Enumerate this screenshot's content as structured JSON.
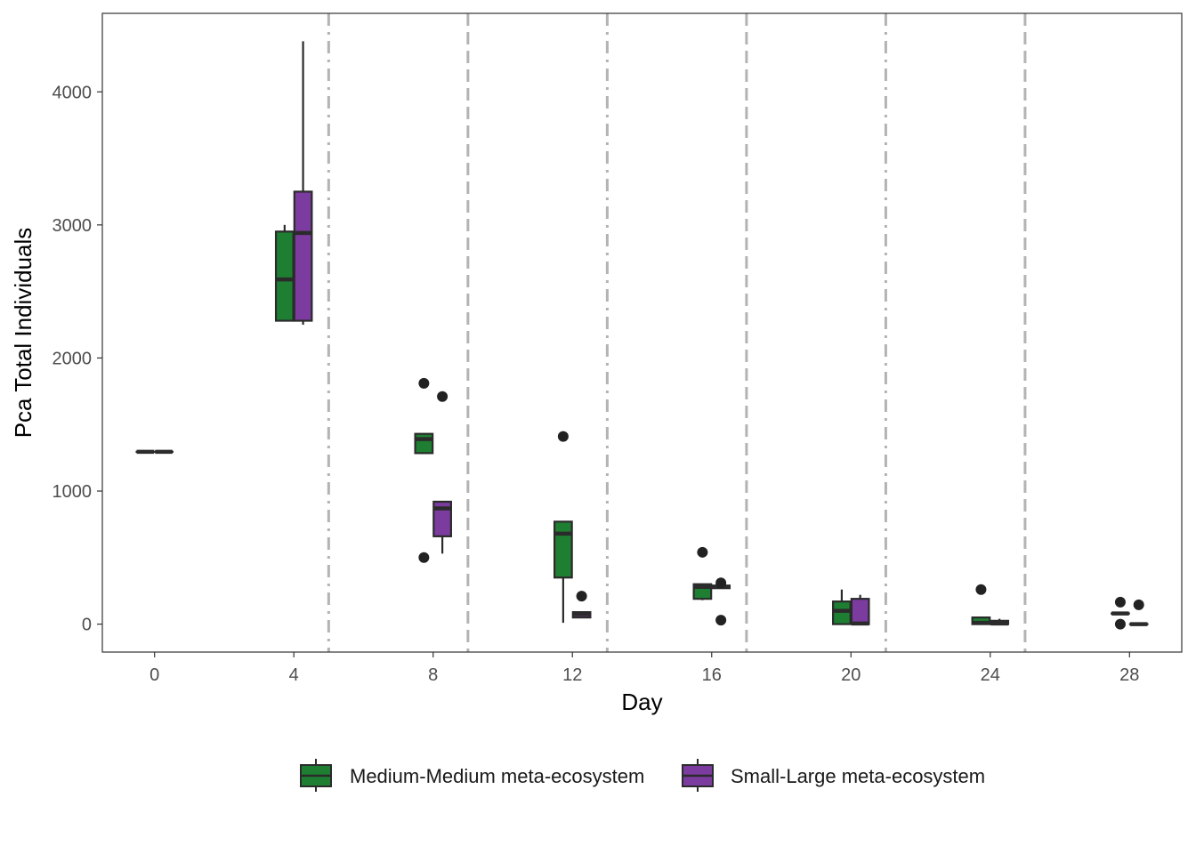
{
  "chart_data": {
    "type": "boxplot",
    "title": "",
    "xlabel": "Day",
    "ylabel": "Pca Total Individuals",
    "x_ticks": [
      0,
      4,
      8,
      12,
      16,
      20,
      24,
      28
    ],
    "y_ticks": [
      0,
      1000,
      2000,
      3000,
      4000
    ],
    "xlim": [
      -1.5,
      29.5
    ],
    "ylim": [
      -210,
      4590
    ],
    "grid": false,
    "legend_position": "bottom",
    "separator_days": [
      5,
      9,
      13,
      17,
      21,
      25
    ],
    "series": [
      {
        "name": "Medium-Medium meta-ecosystem",
        "color": "#1e7f32",
        "boxes": [
          {
            "day": 0,
            "min": 1295,
            "q1": 1295,
            "median": 1295,
            "q3": 1295,
            "max": 1295,
            "outliers": []
          },
          {
            "day": 4,
            "min": 2280,
            "q1": 2280,
            "median": 2590,
            "q3": 2950,
            "max": 3000,
            "outliers": []
          },
          {
            "day": 8,
            "min": 1285,
            "q1": 1285,
            "median": 1390,
            "q3": 1430,
            "max": 1430,
            "outliers": [
              1810,
              500
            ]
          },
          {
            "day": 12,
            "min": 10,
            "q1": 350,
            "median": 680,
            "q3": 770,
            "max": 770,
            "outliers": [
              1410
            ]
          },
          {
            "day": 16,
            "min": 180,
            "q1": 190,
            "median": 280,
            "q3": 300,
            "max": 300,
            "outliers": [
              540
            ]
          },
          {
            "day": 20,
            "min": 0,
            "q1": 0,
            "median": 100,
            "q3": 170,
            "max": 260,
            "outliers": []
          },
          {
            "day": 24,
            "min": 0,
            "q1": 0,
            "median": 10,
            "q3": 50,
            "max": 50,
            "outliers": [
              260
            ]
          },
          {
            "day": 28,
            "min": 80,
            "q1": 80,
            "median": 80,
            "q3": 80,
            "max": 80,
            "outliers": [
              165,
              0
            ]
          }
        ]
      },
      {
        "name": "Small-Large meta-ecosystem",
        "color": "#7b3b9f",
        "boxes": [
          {
            "day": 0,
            "min": 1295,
            "q1": 1295,
            "median": 1295,
            "q3": 1295,
            "max": 1295,
            "outliers": []
          },
          {
            "day": 4,
            "min": 2250,
            "q1": 2280,
            "median": 2940,
            "q3": 3250,
            "max": 4380,
            "outliers": []
          },
          {
            "day": 8,
            "min": 530,
            "q1": 660,
            "median": 870,
            "q3": 920,
            "max": 920,
            "outliers": [
              1710
            ]
          },
          {
            "day": 12,
            "min": 50,
            "q1": 50,
            "median": 75,
            "q3": 90,
            "max": 90,
            "outliers": [
              210
            ]
          },
          {
            "day": 16,
            "min": 270,
            "q1": 270,
            "median": 280,
            "q3": 290,
            "max": 290,
            "outliers": [
              310,
              30
            ]
          },
          {
            "day": 20,
            "min": 0,
            "q1": 0,
            "median": 5,
            "q3": 190,
            "max": 220,
            "outliers": []
          },
          {
            "day": 24,
            "min": 0,
            "q1": 0,
            "median": 5,
            "q3": 25,
            "max": 40,
            "outliers": []
          },
          {
            "day": 28,
            "min": 0,
            "q1": 0,
            "median": 0,
            "q3": 0,
            "max": 0,
            "outliers": [
              145
            ]
          }
        ]
      }
    ]
  }
}
